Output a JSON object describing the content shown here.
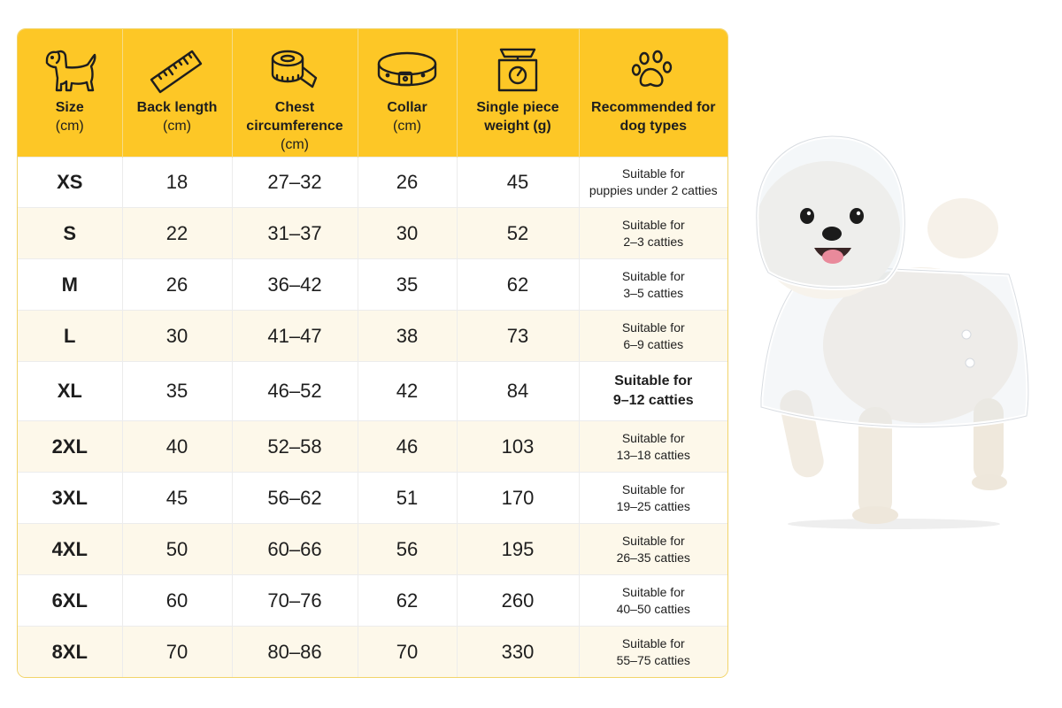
{
  "headers": [
    {
      "icon": "dog-icon",
      "line1": "Size",
      "line2": "(cm)",
      "line2_bold": false
    },
    {
      "icon": "ruler-icon",
      "line1": "Back length",
      "line2": "(cm)",
      "line2_bold": false
    },
    {
      "icon": "tape-measure-icon",
      "line1": "Chest circumference",
      "line2": "(cm)",
      "line2_bold": false
    },
    {
      "icon": "collar-icon",
      "line1": "Collar",
      "line2": "(cm)",
      "line2_bold": false
    },
    {
      "icon": "scale-icon",
      "line1": "Single piece",
      "line2": "weight (g)",
      "line2_bold": true
    },
    {
      "icon": "paw-icon",
      "line1": "Recommended for",
      "line2": "dog types",
      "line2_bold": true
    }
  ],
  "rows": [
    {
      "size": "XS",
      "back": "18",
      "chest": "27–32",
      "collar": "26",
      "weight": "45",
      "rec1": "Suitable for",
      "rec2": "puppies under 2 catties"
    },
    {
      "size": "S",
      "back": "22",
      "chest": "31–37",
      "collar": "30",
      "weight": "52",
      "rec1": "Suitable for",
      "rec2": "2–3 catties"
    },
    {
      "size": "M",
      "back": "26",
      "chest": "36–42",
      "collar": "35",
      "weight": "62",
      "rec1": "Suitable for",
      "rec2": "3–5 catties"
    },
    {
      "size": "L",
      "back": "30",
      "chest": "41–47",
      "collar": "38",
      "weight": "73",
      "rec1": "Suitable for",
      "rec2": "6–9 catties"
    },
    {
      "size": "XL",
      "back": "35",
      "chest": "46–52",
      "collar": "42",
      "weight": "84",
      "rec1": "Suitable for",
      "rec2": "9–12 catties"
    },
    {
      "size": "2XL",
      "back": "40",
      "chest": "52–58",
      "collar": "46",
      "weight": "103",
      "rec1": "Suitable for",
      "rec2": "13–18 catties"
    },
    {
      "size": "3XL",
      "back": "45",
      "chest": "56–62",
      "collar": "51",
      "weight": "170",
      "rec1": "Suitable for",
      "rec2": "19–25 catties"
    },
    {
      "size": "4XL",
      "back": "50",
      "chest": "60–66",
      "collar": "56",
      "weight": "195",
      "rec1": "Suitable for",
      "rec2": "26–35 catties"
    },
    {
      "size": "6XL",
      "back": "60",
      "chest": "70–76",
      "collar": "62",
      "weight": "260",
      "rec1": "Suitable for",
      "rec2": "40–50 catties"
    },
    {
      "size": "8XL",
      "back": "70",
      "chest": "80–86",
      "collar": "70",
      "weight": "330",
      "rec1": "Suitable for",
      "rec2": "55–75 catties"
    }
  ],
  "colors": {
    "header": "#fdc726",
    "stripe": "#fdf8ea",
    "border": "#f2d46a"
  },
  "photo": {
    "subject": "white dog wearing clear raincoat",
    "icon": "dog-in-raincoat-photo"
  }
}
